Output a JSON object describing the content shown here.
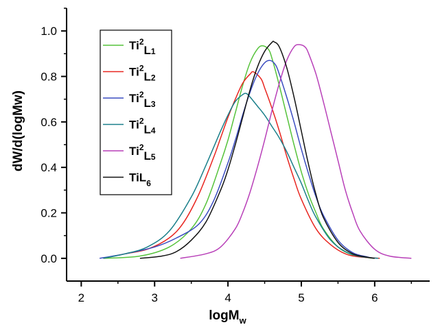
{
  "chart_data": {
    "type": "line",
    "xlabel": "logM",
    "xlabel_sub": "w",
    "ylabel": "dW/d(logMw)",
    "xlim": [
      1.8,
      6.75
    ],
    "ylim": [
      -0.1,
      1.1
    ],
    "xticks": [
      2,
      3,
      4,
      5,
      6
    ],
    "yticks": [
      0.0,
      0.2,
      0.4,
      0.6,
      0.8,
      1.0
    ],
    "ytick_labels": [
      "0.0",
      "0.2",
      "0.4",
      "0.6",
      "0.8",
      "1.0"
    ],
    "grid": false,
    "legend_position": "top-left",
    "series": [
      {
        "name": "Ti2L1",
        "legend_main": "Ti",
        "legend_sup": "2",
        "legend_mid": "L",
        "legend_sub": "1",
        "color": "#55c23a",
        "x": [
          2.3,
          2.8,
          3.2,
          3.5,
          3.7,
          3.9,
          4.0,
          4.1,
          4.2,
          4.3,
          4.4,
          4.47,
          4.55,
          4.6,
          4.7,
          4.8,
          4.9,
          5.0,
          5.1,
          5.2,
          5.3,
          5.5,
          5.7,
          5.9,
          6.0
        ],
        "values": [
          0.0,
          0.01,
          0.05,
          0.13,
          0.24,
          0.42,
          0.52,
          0.64,
          0.76,
          0.86,
          0.92,
          0.935,
          0.92,
          0.88,
          0.76,
          0.63,
          0.5,
          0.38,
          0.28,
          0.2,
          0.13,
          0.05,
          0.015,
          0.003,
          0.0
        ]
      },
      {
        "name": "Ti2L2",
        "legend_main": "Ti",
        "legend_sup": "2",
        "legend_mid": "L",
        "legend_sub": "2",
        "color": "#e8251f",
        "x": [
          2.3,
          2.6,
          2.9,
          3.2,
          3.4,
          3.6,
          3.8,
          3.9,
          4.0,
          4.1,
          4.2,
          4.3,
          4.35,
          4.45,
          4.5,
          4.6,
          4.7,
          4.8,
          4.9,
          5.0,
          5.2,
          5.4,
          5.6,
          5.8,
          6.07
        ],
        "values": [
          0.0,
          0.02,
          0.04,
          0.09,
          0.16,
          0.28,
          0.44,
          0.53,
          0.62,
          0.7,
          0.77,
          0.81,
          0.82,
          0.79,
          0.75,
          0.66,
          0.56,
          0.45,
          0.35,
          0.26,
          0.13,
          0.06,
          0.02,
          0.006,
          0.0
        ]
      },
      {
        "name": "Ti2L3",
        "legend_main": "Ti",
        "legend_sup": "2",
        "legend_mid": "L",
        "legend_sub": "3",
        "color": "#3a4cc0",
        "x": [
          2.25,
          2.6,
          3.0,
          3.3,
          3.6,
          3.8,
          4.0,
          4.1,
          4.2,
          4.3,
          4.4,
          4.5,
          4.58,
          4.65,
          4.7,
          4.8,
          4.9,
          5.0,
          5.1,
          5.2,
          5.3,
          5.5,
          5.7,
          5.9,
          6.0
        ],
        "values": [
          0.0,
          0.02,
          0.05,
          0.09,
          0.15,
          0.25,
          0.42,
          0.52,
          0.63,
          0.73,
          0.81,
          0.86,
          0.87,
          0.85,
          0.81,
          0.71,
          0.6,
          0.48,
          0.37,
          0.27,
          0.19,
          0.08,
          0.025,
          0.006,
          0.0
        ]
      },
      {
        "name": "Ti2L4",
        "legend_main": "Ti",
        "legend_sup": "2",
        "legend_mid": "L",
        "legend_sub": "4",
        "color": "#1a7f8a",
        "x": [
          2.3,
          2.6,
          2.9,
          3.2,
          3.5,
          3.7,
          3.9,
          4.0,
          4.1,
          4.2,
          4.25,
          4.3,
          4.4,
          4.5,
          4.6,
          4.7,
          4.8,
          4.9,
          5.0,
          5.1,
          5.2,
          5.4,
          5.6,
          5.8,
          6.05
        ],
        "values": [
          0.0,
          0.02,
          0.05,
          0.12,
          0.27,
          0.41,
          0.56,
          0.63,
          0.69,
          0.72,
          0.725,
          0.71,
          0.67,
          0.63,
          0.58,
          0.53,
          0.47,
          0.4,
          0.33,
          0.25,
          0.18,
          0.08,
          0.03,
          0.008,
          0.0
        ]
      },
      {
        "name": "Ti2L5",
        "legend_main": "Ti",
        "legend_sup": "2",
        "legend_mid": "L",
        "legend_sub": "5",
        "color": "#b83fb8",
        "x": [
          3.35,
          3.7,
          3.9,
          4.1,
          4.2,
          4.3,
          4.4,
          4.5,
          4.6,
          4.7,
          4.8,
          4.9,
          4.97,
          5.05,
          5.1,
          5.2,
          5.3,
          5.4,
          5.5,
          5.6,
          5.7,
          5.8,
          6.0,
          6.2,
          6.5
        ],
        "values": [
          0.0,
          0.02,
          0.05,
          0.13,
          0.2,
          0.29,
          0.4,
          0.52,
          0.65,
          0.77,
          0.87,
          0.93,
          0.94,
          0.93,
          0.9,
          0.81,
          0.69,
          0.56,
          0.43,
          0.3,
          0.2,
          0.12,
          0.04,
          0.01,
          0.0
        ]
      },
      {
        "name": "TiL6",
        "legend_main": "TiL",
        "legend_sup": "",
        "legend_mid": "",
        "legend_sub": "6",
        "color": "#111111",
        "x": [
          2.8,
          3.1,
          3.3,
          3.5,
          3.7,
          3.9,
          4.0,
          4.1,
          4.2,
          4.3,
          4.4,
          4.5,
          4.6,
          4.63,
          4.7,
          4.8,
          4.9,
          5.0,
          5.1,
          5.2,
          5.3,
          5.5,
          5.7,
          5.9,
          6.0
        ],
        "values": [
          0.0,
          0.01,
          0.03,
          0.08,
          0.16,
          0.3,
          0.39,
          0.5,
          0.62,
          0.74,
          0.84,
          0.91,
          0.95,
          0.952,
          0.93,
          0.84,
          0.71,
          0.56,
          0.41,
          0.28,
          0.18,
          0.07,
          0.02,
          0.005,
          0.0
        ]
      }
    ]
  }
}
